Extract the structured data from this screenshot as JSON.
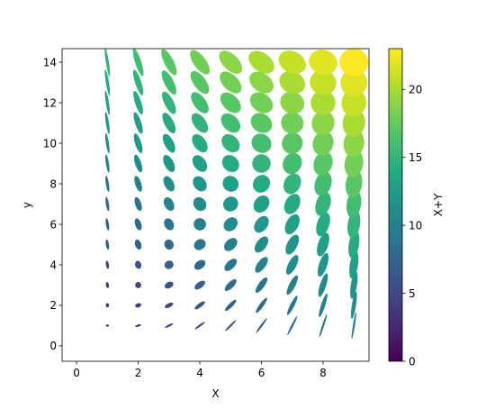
{
  "chart_data": {
    "type": "ellipse-collection",
    "xlabel": "X",
    "ylabel": "y",
    "x": [
      1,
      2,
      3,
      4,
      5,
      6,
      7,
      8,
      9
    ],
    "y": [
      1,
      2,
      3,
      4,
      5,
      6,
      7,
      8,
      9,
      10,
      11,
      12,
      13,
      14
    ],
    "widths": [
      0.1,
      0.2,
      0.3,
      0.4,
      0.5,
      0.6,
      0.7,
      0.8,
      0.9
    ],
    "heights": [
      0.067,
      0.133,
      0.2,
      0.267,
      0.333,
      0.4,
      0.467,
      0.533,
      0.6,
      0.667,
      0.733,
      0.8,
      0.867,
      0.933
    ],
    "angles": [
      9,
      18,
      27,
      36,
      45,
      54,
      63,
      72,
      81
    ],
    "values": [
      [
        2,
        3,
        4,
        5,
        6,
        7,
        8,
        9,
        10
      ],
      [
        3,
        4,
        5,
        6,
        7,
        8,
        9,
        10,
        11
      ],
      [
        4,
        5,
        6,
        7,
        8,
        9,
        10,
        11,
        12
      ],
      [
        5,
        6,
        7,
        8,
        9,
        10,
        11,
        12,
        13
      ],
      [
        6,
        7,
        8,
        9,
        10,
        11,
        12,
        13,
        14
      ],
      [
        7,
        8,
        9,
        10,
        11,
        12,
        13,
        14,
        15
      ],
      [
        8,
        9,
        10,
        11,
        12,
        13,
        14,
        15,
        16
      ],
      [
        9,
        10,
        11,
        12,
        13,
        14,
        15,
        16,
        17
      ],
      [
        10,
        11,
        12,
        13,
        14,
        15,
        16,
        17,
        18
      ],
      [
        11,
        12,
        13,
        14,
        15,
        16,
        17,
        18,
        19
      ],
      [
        12,
        13,
        14,
        15,
        16,
        17,
        18,
        19,
        20
      ],
      [
        13,
        14,
        15,
        16,
        17,
        18,
        19,
        20,
        21
      ],
      [
        14,
        15,
        16,
        17,
        18,
        19,
        20,
        21,
        22
      ],
      [
        15,
        16,
        17,
        18,
        19,
        20,
        21,
        22,
        23
      ]
    ],
    "xlim": [
      -0.47,
      9.49
    ],
    "xticks": [
      0,
      2,
      4,
      6,
      8
    ],
    "ylim": [
      -0.76,
      14.67
    ],
    "yticks": [
      0,
      2,
      4,
      6,
      8,
      10,
      12,
      14
    ],
    "colormap": "viridis",
    "colorbar": {
      "label": "X+Y",
      "lim": [
        0,
        23
      ],
      "ticks": [
        0,
        5,
        10,
        15,
        20
      ]
    }
  }
}
